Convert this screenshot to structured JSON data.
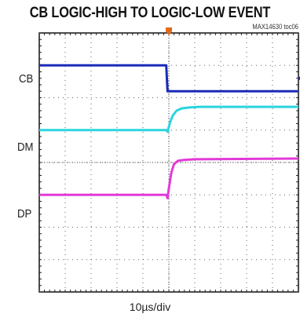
{
  "title": "CB LOGIC-HIGH TO LOGIC-LOW EVENT",
  "tag": "MAX14630 toc06",
  "xlabel": "10µs/div",
  "colors": {
    "CB": "#1a2bb8",
    "DM": "#2ad4e0",
    "DP": "#e23ad8",
    "grid": "#222222",
    "frame": "#111111",
    "trigger": "#e06a1a"
  },
  "chart_data": {
    "type": "line",
    "title": "CB LOGIC-HIGH TO LOGIC-LOW EVENT",
    "xlabel": "10µs/div",
    "ylabel": "",
    "grid": true,
    "divisions": {
      "x": 10,
      "y": 8
    },
    "xlim": [
      0,
      10
    ],
    "ylim": [
      0,
      8
    ],
    "x_unit": "div",
    "y_unit": "div",
    "series": [
      {
        "name": "CB",
        "x": [
          0,
          4.9,
          4.95,
          10
        ],
        "values": [
          7.0,
          7.0,
          6.2,
          6.2
        ]
      },
      {
        "name": "DM",
        "x": [
          0,
          4.9,
          4.95,
          5.05,
          5.15,
          5.3,
          5.5,
          5.8,
          6.2,
          10
        ],
        "values": [
          5.0,
          5.0,
          4.95,
          5.25,
          5.45,
          5.6,
          5.67,
          5.7,
          5.72,
          5.72
        ]
      },
      {
        "name": "DP",
        "x": [
          0,
          4.9,
          4.95,
          5.0,
          5.1,
          5.2,
          5.35,
          5.6,
          6.0,
          10
        ],
        "values": [
          3.0,
          3.0,
          2.9,
          3.2,
          3.7,
          3.95,
          4.05,
          4.08,
          4.1,
          4.12
        ]
      }
    ],
    "trigger_position": 5.0,
    "channel_labels": [
      "CB",
      "DM",
      "DP"
    ]
  }
}
